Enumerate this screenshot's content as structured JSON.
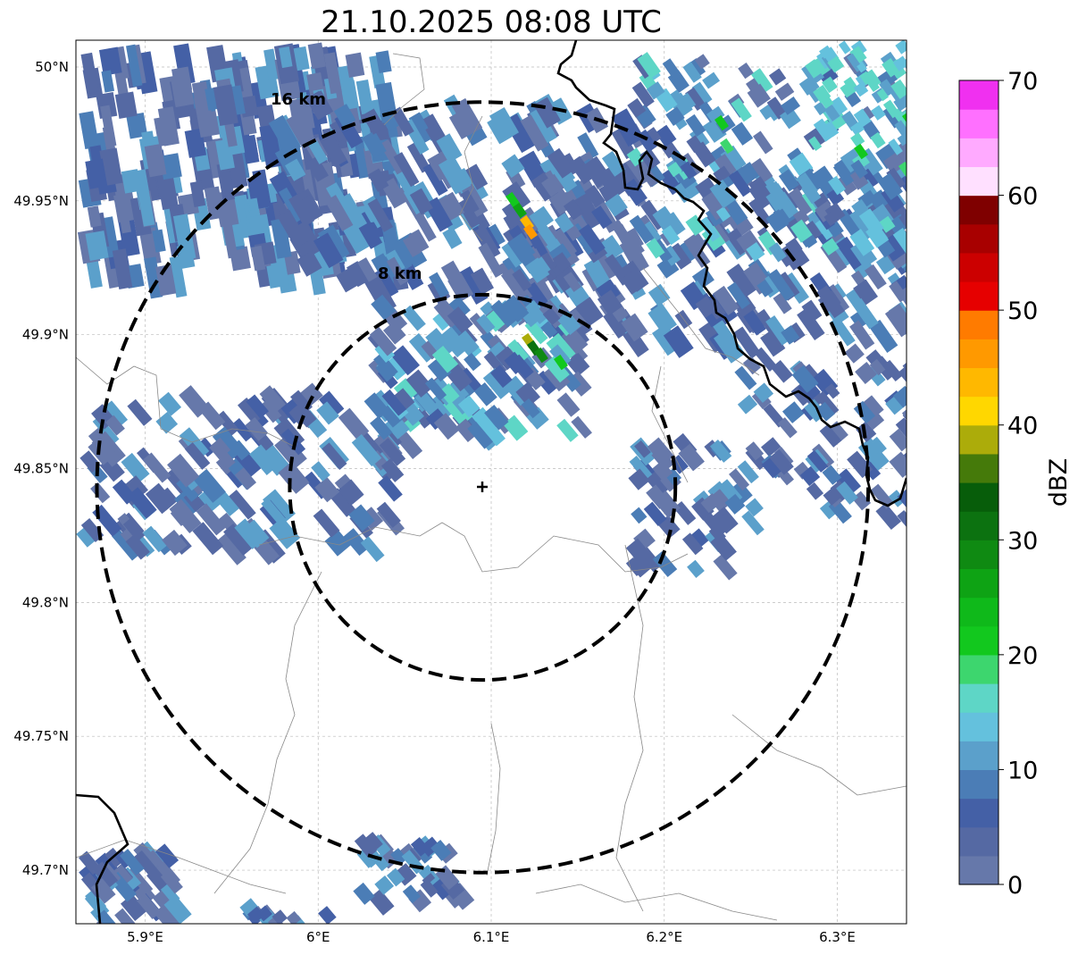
{
  "title": "21.10.2025 08:08 UTC",
  "map": {
    "lon_range": [
      5.86,
      6.34
    ],
    "lat_range": [
      49.68,
      50.01
    ],
    "center": {
      "lon": 6.095,
      "lat": 49.843
    },
    "lon_ticks": [
      5.9,
      6.0,
      6.1,
      6.2,
      6.3
    ],
    "lon_tick_labels": [
      "5.9°E",
      "6°E",
      "6.1°E",
      "6.2°E",
      "6.3°E"
    ],
    "lat_ticks": [
      50.0,
      49.95,
      49.9,
      49.85,
      49.8,
      49.75,
      49.7
    ],
    "lat_tick_labels": [
      "50°N",
      "49.95°N",
      "49.9°N",
      "49.85°N",
      "49.8°N",
      "49.75°N",
      "49.7°N"
    ],
    "grid": true,
    "range_rings": [
      {
        "radius_km": 8,
        "label": "8 km"
      },
      {
        "radius_km": 16,
        "label": "16 km"
      }
    ],
    "border_color": "#000000",
    "admin_line_color": "#888888"
  },
  "colorbar": {
    "label": "dBZ",
    "min": 0,
    "max": 70,
    "ticks": [
      0,
      10,
      20,
      30,
      40,
      50,
      60,
      70
    ],
    "tick_labels": [
      "0",
      "10",
      "20",
      "30",
      "40",
      "50",
      "60",
      "70"
    ],
    "colors": [
      "#6678aa",
      "#5569a3",
      "#4460a6",
      "#4b7db6",
      "#5ba0cb",
      "#64c1dd",
      "#5ed6c6",
      "#3dd66e",
      "#12c81e",
      "#0fb91a",
      "#0ea314",
      "#0f8a12",
      "#0c7210",
      "#075d0a",
      "#457a0a",
      "#acac0a",
      "#ffd700",
      "#ffb800",
      "#ff9900",
      "#ff7b00",
      "#e60000",
      "#cc0000",
      "#a80000",
      "#7f0000",
      "#ffe0ff",
      "#ffaaff",
      "#ff70ff",
      "#f030f0"
    ]
  }
}
